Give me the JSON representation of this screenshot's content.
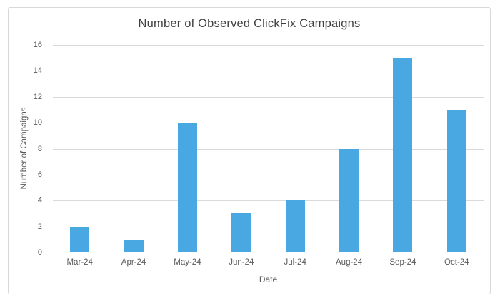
{
  "chart_data": {
    "type": "bar",
    "title": "Number of Observed ClickFix Campaigns",
    "categories": [
      "Mar-24",
      "Apr-24",
      "May-24",
      "Jun-24",
      "Jul-24",
      "Aug-24",
      "Sep-24",
      "Oct-24"
    ],
    "values": [
      2,
      1,
      10,
      3,
      4,
      8,
      15,
      11
    ],
    "xlabel": "Date",
    "ylabel": "Number of Campaigns",
    "ylim": [
      0,
      16
    ],
    "ytick_step": 2,
    "y_ticks": [
      "0",
      "2",
      "4",
      "6",
      "8",
      "10",
      "12",
      "14",
      "16"
    ],
    "grid": true,
    "legend": false,
    "colors": {
      "bar_fill": "#49a8e2",
      "gridline": "#dadada",
      "axis_line": "#c6c6c6",
      "title_text": "#3f3f3f",
      "tick_text": "#595959",
      "frame_border": "#d8d8d8",
      "background": "#ffffff"
    }
  }
}
